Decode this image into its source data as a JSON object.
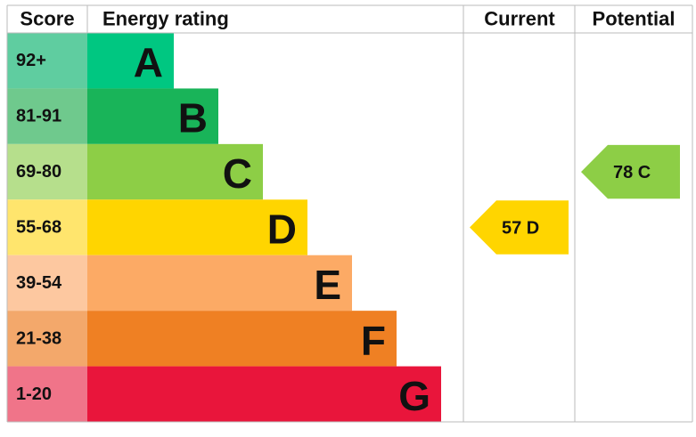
{
  "chart_data": {
    "type": "epc",
    "headers": {
      "score": "Score",
      "rating": "Energy rating",
      "current": "Current",
      "potential": "Potential"
    },
    "bands": [
      {
        "score": "92+",
        "letter": "A",
        "color": "#00c781",
        "score_color": "#5fcda0"
      },
      {
        "score": "81-91",
        "letter": "B",
        "color": "#19b459",
        "score_color": "#6fc98d"
      },
      {
        "score": "69-80",
        "letter": "C",
        "color": "#8dce46",
        "score_color": "#b6df8c"
      },
      {
        "score": "55-68",
        "letter": "D",
        "color": "#ffd500",
        "score_color": "#ffe56d"
      },
      {
        "score": "39-54",
        "letter": "E",
        "color": "#fcaa65",
        "score_color": "#fdc8a0"
      },
      {
        "score": "21-38",
        "letter": "F",
        "color": "#ef8023",
        "score_color": "#f3a86b"
      },
      {
        "score": "1-20",
        "letter": "G",
        "color": "#e9153b",
        "score_color": "#f07489"
      }
    ],
    "current": {
      "value": 57,
      "label": "57 D",
      "color": "#ffd500"
    },
    "potential": {
      "value": 78,
      "label": "78 C",
      "color": "#8dce46"
    }
  }
}
